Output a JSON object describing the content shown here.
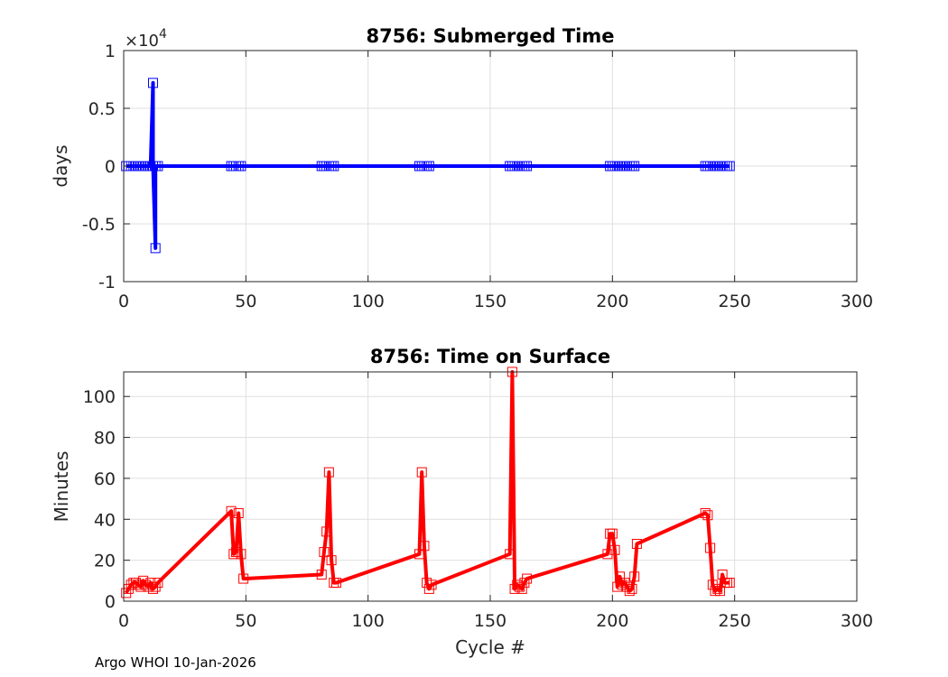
{
  "footer": "Argo WHOI 10-Jan-2026",
  "chart_data": [
    {
      "type": "line",
      "title": "8756: Submerged Time",
      "xlabel": "",
      "ylabel": "days",
      "xlim": [
        0,
        300
      ],
      "ylim": [
        -1,
        1
      ],
      "xticks": [
        "0",
        "50",
        "100",
        "150",
        "200",
        "250",
        "300"
      ],
      "yticks": [
        "-1",
        "-0.5",
        "0",
        "0.5",
        "1"
      ],
      "exponent_base": "×10",
      "exponent_power": "4",
      "grid": true,
      "color": "#0000ff",
      "marker": "square",
      "series": [
        {
          "name": "submerged",
          "x": [
            1,
            2,
            3,
            4,
            5,
            6,
            7,
            8,
            9,
            10,
            11,
            12,
            12,
            13,
            13,
            14,
            44,
            45,
            46,
            47,
            48,
            81,
            82,
            83,
            84,
            85,
            86,
            121,
            122,
            123,
            124,
            125,
            158,
            159,
            160,
            161,
            162,
            163,
            164,
            165,
            199,
            200,
            201,
            202,
            203,
            204,
            205,
            206,
            207,
            208,
            209,
            238,
            239,
            240,
            241,
            242,
            243,
            244,
            245,
            246,
            247,
            248
          ],
          "y": [
            0,
            0,
            0,
            0,
            0,
            0,
            0,
            0,
            0,
            0,
            0,
            0.72,
            0,
            -0.71,
            0,
            0,
            0,
            0,
            0,
            0,
            0,
            0,
            0,
            0,
            0,
            0,
            0,
            0,
            0,
            0,
            0,
            0,
            0,
            0,
            0,
            0,
            0,
            0,
            0,
            0,
            0,
            0,
            0,
            0,
            0,
            0,
            0,
            0,
            0,
            0,
            0,
            0,
            0,
            0,
            0,
            0,
            0,
            0,
            0,
            0,
            0,
            0
          ]
        }
      ]
    },
    {
      "type": "line",
      "title": "8756: Time on Surface",
      "xlabel": "Cycle #",
      "ylabel": "Minutes",
      "xlim": [
        0,
        300
      ],
      "ylim": [
        0,
        112
      ],
      "xticks": [
        "0",
        "50",
        "100",
        "150",
        "200",
        "250",
        "300"
      ],
      "yticks": [
        "0",
        "20",
        "40",
        "60",
        "80",
        "100"
      ],
      "grid": true,
      "color": "#ff0000",
      "marker": "square",
      "series": [
        {
          "name": "surface",
          "x": [
            1,
            2,
            3,
            4,
            5,
            6,
            7,
            8,
            9,
            10,
            11,
            12,
            13,
            14,
            44,
            45,
            46,
            47,
            48,
            49,
            81,
            82,
            83,
            84,
            85,
            86,
            87,
            121,
            122,
            123,
            124,
            125,
            126,
            158,
            159,
            160,
            161,
            162,
            163,
            164,
            165,
            198,
            199,
            200,
            201,
            202,
            203,
            204,
            205,
            206,
            207,
            208,
            209,
            210,
            238,
            239,
            240,
            241,
            242,
            243,
            244,
            245,
            246,
            247,
            248
          ],
          "y": [
            4,
            6,
            8,
            9,
            9,
            8,
            7,
            10,
            8,
            7,
            9,
            6,
            7,
            9,
            44,
            23,
            24,
            43,
            23,
            11,
            13,
            24,
            34,
            63,
            20,
            9,
            9,
            23,
            63,
            27,
            9,
            6,
            8,
            23,
            112,
            6,
            8,
            7,
            6,
            9,
            11,
            23,
            33,
            33,
            25,
            7,
            12,
            8,
            9,
            7,
            5,
            6,
            12,
            28,
            43,
            42,
            26,
            8,
            5,
            6,
            5,
            13,
            9,
            9,
            9
          ]
        }
      ]
    }
  ]
}
